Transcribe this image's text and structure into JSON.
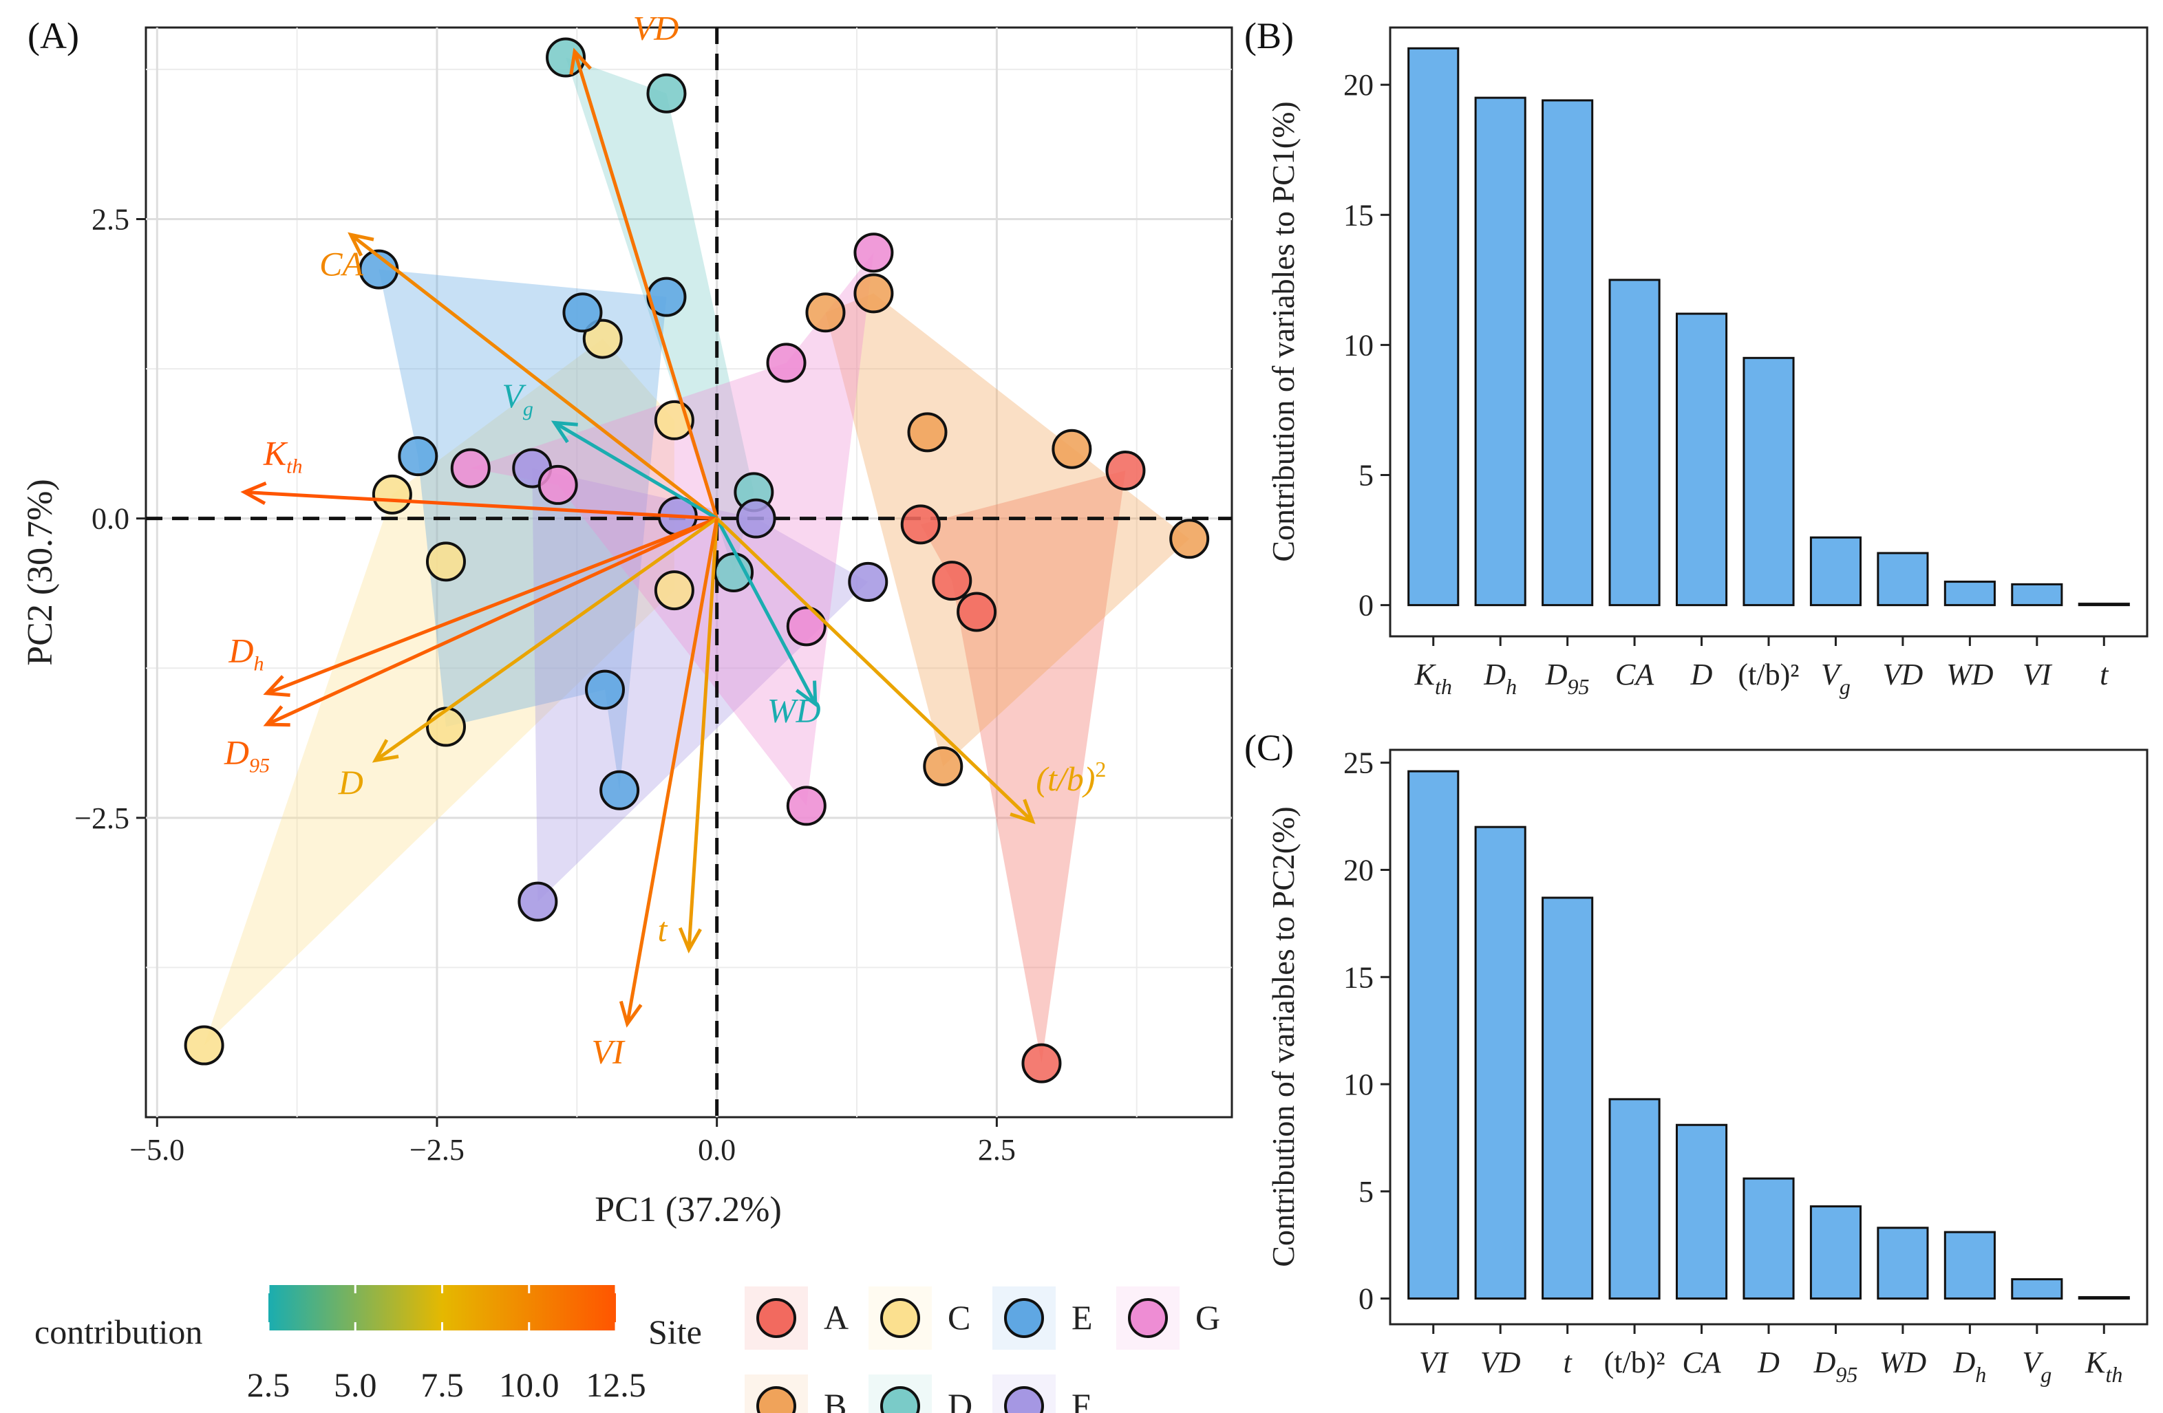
{
  "chart_data": [
    {
      "panel": "(A)",
      "type": "scatter",
      "subtype": "pca_biplot",
      "xlabel": "PC1 (37.2%)",
      "ylabel": "PC2 (30.7%)",
      "xlim": [
        -5.1,
        4.6
      ],
      "ylim": [
        -5.0,
        4.1
      ],
      "xticks": [
        -5.0,
        -2.5,
        0.0,
        2.5
      ],
      "yticks": [
        -2.5,
        0.0,
        2.5
      ],
      "xtick_labels": [
        "−5.0",
        "−2.5",
        "0.0",
        "2.5"
      ],
      "ytick_labels": [
        "−2.5",
        "0.0",
        "2.5"
      ],
      "site_colors": {
        "A": "#F26A5F",
        "B": "#F0A35A",
        "C": "#FBE08F",
        "D": "#7ACBC8",
        "E": "#5FA7E3",
        "F": "#A597E3",
        "G": "#EE8DD4"
      },
      "points": [
        {
          "site": "A",
          "x": 3.65,
          "y": 0.4
        },
        {
          "site": "A",
          "x": 2.9,
          "y": -4.55
        },
        {
          "site": "A",
          "x": 2.1,
          "y": -0.52
        },
        {
          "site": "A",
          "x": 2.32,
          "y": -0.78
        },
        {
          "site": "A",
          "x": 1.82,
          "y": -0.05
        },
        {
          "site": "B",
          "x": 4.22,
          "y": -0.17
        },
        {
          "site": "B",
          "x": 3.17,
          "y": 0.58
        },
        {
          "site": "B",
          "x": 1.88,
          "y": 0.72
        },
        {
          "site": "B",
          "x": 1.4,
          "y": 1.88
        },
        {
          "site": "B",
          "x": 0.97,
          "y": 1.72
        },
        {
          "site": "B",
          "x": 2.02,
          "y": -2.07
        },
        {
          "site": "C",
          "x": -4.58,
          "y": -4.4
        },
        {
          "site": "C",
          "x": -2.9,
          "y": 0.2
        },
        {
          "site": "C",
          "x": -1.02,
          "y": 1.5
        },
        {
          "site": "C",
          "x": -0.38,
          "y": 0.82
        },
        {
          "site": "C",
          "x": -2.42,
          "y": -0.36
        },
        {
          "site": "C",
          "x": -2.42,
          "y": -1.74
        },
        {
          "site": "C",
          "x": -0.38,
          "y": -0.6
        },
        {
          "site": "D",
          "x": -1.35,
          "y": 3.85
        },
        {
          "site": "D",
          "x": -0.45,
          "y": 3.55
        },
        {
          "site": "D",
          "x": 0.33,
          "y": 0.22
        },
        {
          "site": "D",
          "x": 0.15,
          "y": -0.45
        },
        {
          "site": "E",
          "x": -3.02,
          "y": 2.08
        },
        {
          "site": "E",
          "x": -2.67,
          "y": 0.52
        },
        {
          "site": "E",
          "x": -1.2,
          "y": 1.72
        },
        {
          "site": "E",
          "x": -0.45,
          "y": 1.85
        },
        {
          "site": "E",
          "x": -1.0,
          "y": -1.43
        },
        {
          "site": "E",
          "x": -0.87,
          "y": -2.27
        },
        {
          "site": "F",
          "x": -1.6,
          "y": -3.2
        },
        {
          "site": "F",
          "x": 1.35,
          "y": -0.53
        },
        {
          "site": "F",
          "x": -1.65,
          "y": 0.42
        },
        {
          "site": "F",
          "x": -0.35,
          "y": 0.02
        },
        {
          "site": "F",
          "x": 0.35,
          "y": 0.0
        },
        {
          "site": "G",
          "x": 1.4,
          "y": 2.22
        },
        {
          "site": "G",
          "x": 0.62,
          "y": 1.3
        },
        {
          "site": "G",
          "x": -2.2,
          "y": 0.42
        },
        {
          "site": "G",
          "x": -1.42,
          "y": 0.28
        },
        {
          "site": "G",
          "x": 0.8,
          "y": -0.9
        },
        {
          "site": "G",
          "x": 0.8,
          "y": -2.4
        }
      ],
      "hulls": [
        {
          "site": "A",
          "points": [
            [
              3.65,
              0.4
            ],
            [
              2.9,
              -4.55
            ],
            [
              2.1,
              -0.52
            ],
            [
              1.82,
              -0.05
            ]
          ]
        },
        {
          "site": "B",
          "points": [
            [
              1.4,
              1.88
            ],
            [
              4.22,
              -0.17
            ],
            [
              2.02,
              -2.07
            ],
            [
              0.97,
              1.72
            ]
          ]
        },
        {
          "site": "C",
          "points": [
            [
              -4.58,
              -4.4
            ],
            [
              -2.9,
              0.2
            ],
            [
              -1.02,
              1.5
            ],
            [
              -0.38,
              0.82
            ],
            [
              -0.38,
              -0.6
            ]
          ]
        },
        {
          "site": "D",
          "points": [
            [
              -1.35,
              3.85
            ],
            [
              -0.45,
              3.55
            ],
            [
              0.33,
              0.22
            ],
            [
              0.15,
              -0.45
            ]
          ]
        },
        {
          "site": "E",
          "points": [
            [
              -3.02,
              2.08
            ],
            [
              -0.45,
              1.85
            ],
            [
              -0.87,
              -2.27
            ],
            [
              -1.0,
              -1.43
            ],
            [
              -2.42,
              -1.74
            ],
            [
              -2.67,
              0.52
            ]
          ]
        },
        {
          "site": "F",
          "points": [
            [
              -1.65,
              0.42
            ],
            [
              0.35,
              0.0
            ],
            [
              1.35,
              -0.53
            ],
            [
              -1.6,
              -3.2
            ]
          ]
        },
        {
          "site": "G",
          "points": [
            [
              1.4,
              2.22
            ],
            [
              0.8,
              -2.4
            ],
            [
              -1.42,
              0.28
            ],
            [
              -2.2,
              0.42
            ],
            [
              0.62,
              1.3
            ]
          ]
        }
      ],
      "vectors": [
        {
          "name": "VD",
          "sub": "",
          "sup": "",
          "x": -1.27,
          "y": 3.9,
          "contribution": 11.0,
          "label_x": -0.75,
          "label_y": 4.0
        },
        {
          "name": "CA",
          "sub": "",
          "sup": "",
          "x": -3.27,
          "y": 2.37,
          "contribution": 10.0,
          "label_x": -3.55,
          "label_y": 2.03
        },
        {
          "name": "V",
          "sub": "g",
          "sup": "",
          "x": -1.45,
          "y": 0.8,
          "contribution": 2.5,
          "label_x": -1.92,
          "label_y": 0.93
        },
        {
          "name": "K",
          "sub": "th",
          "sup": "",
          "x": -4.22,
          "y": 0.22,
          "contribution": 12.5,
          "label_x": -4.05,
          "label_y": 0.45
        },
        {
          "name": "D",
          "sub": "h",
          "sup": "",
          "x": -4.02,
          "y": -1.46,
          "contribution": 12.0,
          "label_x": -4.36,
          "label_y": -1.2
        },
        {
          "name": "D",
          "sub": "95",
          "sup": "",
          "x": -4.02,
          "y": -1.72,
          "contribution": 12.0,
          "label_x": -4.4,
          "label_y": -2.05
        },
        {
          "name": "D",
          "sub": "",
          "sup": "",
          "x": -3.05,
          "y": -2.02,
          "contribution": 8.5,
          "label_x": -3.38,
          "label_y": -2.3
        },
        {
          "name": "WD",
          "sub": "",
          "sup": "",
          "x": 0.88,
          "y": -1.55,
          "contribution": 2.5,
          "label_x": 0.45,
          "label_y": -1.7
        },
        {
          "name": "(t/b)",
          "sub": "",
          "sup": "2",
          "x": 2.82,
          "y": -2.53,
          "contribution": 8.5,
          "label_x": 2.85,
          "label_y": -2.27
        },
        {
          "name": "t",
          "sub": "",
          "sup": "",
          "x": -0.25,
          "y": -3.6,
          "contribution": 9.0,
          "label_x": -0.53,
          "label_y": -3.53
        },
        {
          "name": "VI",
          "sub": "",
          "sup": "",
          "x": -0.8,
          "y": -4.22,
          "contribution": 11.0,
          "label_x": -1.12,
          "label_y": -4.55
        }
      ],
      "legend": {
        "contribution_title": "contribution",
        "contribution_ticks": [
          "2.5",
          "5.0",
          "7.5",
          "10.0",
          "12.5"
        ],
        "contribution_range": [
          2.5,
          12.5
        ],
        "gradient_colors": [
          "#1AADB0",
          "#E5B800",
          "#FF5500"
        ],
        "site_title": "Site",
        "sites": [
          "A",
          "B",
          "C",
          "D",
          "E",
          "F",
          "G"
        ]
      }
    },
    {
      "panel": "(B)",
      "type": "bar",
      "ylabel": "Contribution of variables to PC1(%)",
      "ylim": [
        -1.2,
        22.2
      ],
      "yticks": [
        0,
        5,
        10,
        15,
        20
      ],
      "ytick_labels": [
        "0",
        "5",
        "10",
        "15",
        "20"
      ],
      "bar_color": "#6CB2EC",
      "categories": [
        {
          "name": "K",
          "sub": "th"
        },
        {
          "name": "D",
          "sub": "h"
        },
        {
          "name": "D",
          "sub": "95"
        },
        {
          "name": "CA",
          "sub": ""
        },
        {
          "name": "D",
          "sub": ""
        },
        {
          "name": "(t/b)²",
          "sub": "",
          "upright": true
        },
        {
          "name": "V",
          "sub": "g"
        },
        {
          "name": "VD",
          "sub": ""
        },
        {
          "name": "WD",
          "sub": ""
        },
        {
          "name": "VI",
          "sub": ""
        },
        {
          "name": "t",
          "sub": ""
        }
      ],
      "values": [
        21.4,
        19.5,
        19.4,
        12.5,
        11.2,
        9.5,
        2.6,
        2.0,
        0.9,
        0.8,
        0.05
      ]
    },
    {
      "panel": "(C)",
      "type": "bar",
      "ylabel": "Contribution of variables to PC2(%)",
      "ylim": [
        -1.2,
        25.6
      ],
      "yticks": [
        0,
        5,
        10,
        15,
        20,
        25
      ],
      "ytick_labels": [
        "0",
        "5",
        "10",
        "15",
        "20",
        "25"
      ],
      "bar_color": "#6CB2EC",
      "categories": [
        {
          "name": "VI",
          "sub": ""
        },
        {
          "name": "VD",
          "sub": ""
        },
        {
          "name": "t",
          "sub": ""
        },
        {
          "name": "(t/b)²",
          "sub": "",
          "upright": true
        },
        {
          "name": "CA",
          "sub": ""
        },
        {
          "name": "D",
          "sub": ""
        },
        {
          "name": "D",
          "sub": "95"
        },
        {
          "name": "WD",
          "sub": ""
        },
        {
          "name": "D",
          "sub": "h"
        },
        {
          "name": "V",
          "sub": "g"
        },
        {
          "name": "K",
          "sub": "th"
        }
      ],
      "values": [
        24.6,
        22.0,
        18.7,
        9.3,
        8.1,
        5.6,
        4.3,
        3.3,
        3.1,
        0.9,
        0.05
      ]
    }
  ]
}
